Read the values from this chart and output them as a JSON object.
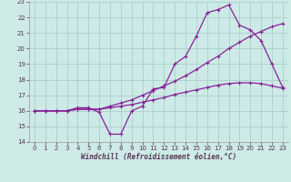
{
  "xlabel": "Windchill (Refroidissement éolien,°C)",
  "bg_color": "#cdeae6",
  "grid_color": "#aacfcb",
  "line_color": "#882299",
  "xlim": [
    -0.5,
    23.5
  ],
  "ylim": [
    14,
    23
  ],
  "xticks": [
    0,
    1,
    2,
    3,
    4,
    5,
    6,
    7,
    8,
    9,
    10,
    11,
    12,
    13,
    14,
    15,
    16,
    17,
    18,
    19,
    20,
    21,
    22,
    23
  ],
  "yticks": [
    14,
    15,
    16,
    17,
    18,
    19,
    20,
    21,
    22,
    23
  ],
  "line1_x": [
    0,
    1,
    2,
    3,
    4,
    5,
    6,
    7,
    8,
    9,
    10,
    11,
    12,
    13,
    14,
    15,
    16,
    17,
    18,
    19,
    20,
    21,
    22,
    23
  ],
  "line1_y": [
    16,
    16,
    16,
    16,
    16.2,
    16.2,
    15.9,
    14.5,
    14.5,
    16.0,
    16.3,
    17.4,
    17.5,
    19.0,
    19.5,
    20.8,
    22.3,
    22.5,
    22.8,
    21.5,
    21.2,
    20.5,
    19.0,
    17.5
  ],
  "line2_x": [
    0,
    1,
    2,
    3,
    4,
    5,
    6,
    7,
    8,
    9,
    10,
    11,
    12,
    13,
    14,
    15,
    16,
    17,
    18,
    19,
    20,
    21,
    22,
    23
  ],
  "line2_y": [
    16,
    16,
    16,
    16,
    16.1,
    16.1,
    16.1,
    16.2,
    16.3,
    16.4,
    16.55,
    16.7,
    16.85,
    17.05,
    17.2,
    17.35,
    17.5,
    17.65,
    17.75,
    17.8,
    17.8,
    17.75,
    17.6,
    17.45
  ],
  "line3_x": [
    0,
    1,
    2,
    3,
    4,
    5,
    6,
    7,
    8,
    9,
    10,
    11,
    12,
    13,
    14,
    15,
    16,
    17,
    18,
    19,
    20,
    21,
    22,
    23
  ],
  "line3_y": [
    16,
    16,
    16,
    16,
    16.1,
    16.1,
    16.1,
    16.3,
    16.5,
    16.7,
    17.0,
    17.3,
    17.6,
    17.9,
    18.25,
    18.65,
    19.1,
    19.5,
    20.0,
    20.4,
    20.8,
    21.1,
    21.4,
    21.6
  ]
}
